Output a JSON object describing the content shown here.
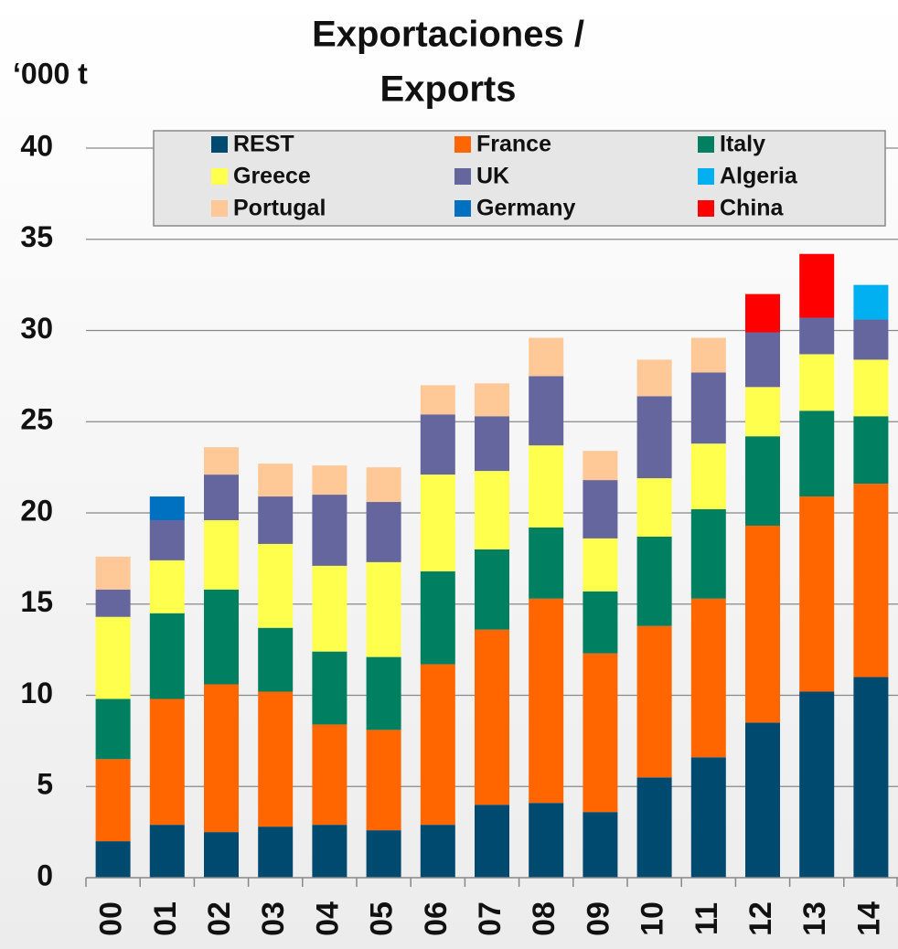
{
  "chart_data": {
    "type": "stacked_bar",
    "title": [
      "Exportaciones /",
      "Exports"
    ],
    "y_axis_label": "‘000 t",
    "categories": [
      "00",
      "01",
      "02",
      "03",
      "04",
      "05",
      "06",
      "07",
      "08",
      "09",
      "10",
      "11",
      "12",
      "13",
      "14"
    ],
    "series": [
      {
        "name": "REST",
        "color": "#004a70",
        "values": [
          2.0,
          2.9,
          2.5,
          2.8,
          2.9,
          2.6,
          2.9,
          4.0,
          4.1,
          3.6,
          5.5,
          6.6,
          8.5,
          10.2,
          11.0
        ]
      },
      {
        "name": "France",
        "color": "#ff6600",
        "values": [
          4.5,
          6.9,
          8.1,
          7.4,
          5.5,
          5.5,
          8.8,
          9.6,
          11.2,
          8.7,
          8.3,
          8.7,
          10.8,
          10.7,
          10.6
        ]
      },
      {
        "name": "Italy",
        "color": "#008060",
        "values": [
          3.3,
          4.7,
          5.2,
          3.5,
          4.0,
          4.0,
          5.1,
          4.4,
          3.9,
          3.4,
          4.9,
          4.9,
          4.9,
          4.7,
          3.7
        ]
      },
      {
        "name": "Greece",
        "color": "#ffff4d",
        "values": [
          4.5,
          2.9,
          3.8,
          4.6,
          4.7,
          5.2,
          5.3,
          4.3,
          4.5,
          2.9,
          3.2,
          3.6,
          2.7,
          3.1,
          3.1
        ]
      },
      {
        "name": "UK",
        "color": "#66669e",
        "values": [
          1.5,
          2.2,
          2.5,
          2.6,
          3.9,
          3.3,
          3.3,
          3.0,
          3.8,
          3.2,
          4.5,
          3.9,
          3.0,
          2.0,
          2.2
        ]
      },
      {
        "name": "Algeria",
        "color": "#00b0f0",
        "values": [
          null,
          null,
          null,
          null,
          null,
          null,
          null,
          null,
          null,
          null,
          null,
          null,
          null,
          null,
          1.9
        ]
      },
      {
        "name": "Portugal",
        "color": "#ffc896",
        "values": [
          1.8,
          null,
          1.5,
          1.8,
          1.6,
          1.9,
          1.6,
          1.8,
          2.1,
          1.6,
          2.0,
          1.9,
          null,
          null,
          null
        ]
      },
      {
        "name": "Germany",
        "color": "#0070c0",
        "values": [
          null,
          1.3,
          null,
          null,
          null,
          null,
          null,
          null,
          null,
          null,
          null,
          null,
          null,
          null,
          null
        ]
      },
      {
        "name": "China",
        "color": "#ff0000",
        "values": [
          null,
          null,
          null,
          null,
          null,
          null,
          null,
          null,
          null,
          null,
          null,
          null,
          2.1,
          3.5,
          null
        ]
      }
    ],
    "ylim": [
      0,
      40
    ],
    "yticks": [
      0,
      5,
      10,
      15,
      20,
      25,
      30,
      35,
      40
    ],
    "grid": true,
    "legend": "top"
  }
}
